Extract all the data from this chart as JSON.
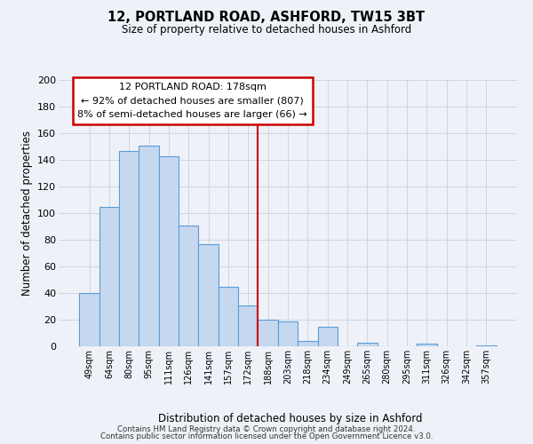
{
  "title": "12, PORTLAND ROAD, ASHFORD, TW15 3BT",
  "subtitle": "Size of property relative to detached houses in Ashford",
  "xlabel": "Distribution of detached houses by size in Ashford",
  "ylabel": "Number of detached properties",
  "categories": [
    "49sqm",
    "64sqm",
    "80sqm",
    "95sqm",
    "111sqm",
    "126sqm",
    "141sqm",
    "157sqm",
    "172sqm",
    "188sqm",
    "203sqm",
    "218sqm",
    "234sqm",
    "249sqm",
    "265sqm",
    "280sqm",
    "295sqm",
    "311sqm",
    "326sqm",
    "342sqm",
    "357sqm"
  ],
  "values": [
    40,
    105,
    147,
    151,
    143,
    91,
    77,
    45,
    31,
    20,
    19,
    4,
    15,
    0,
    3,
    0,
    0,
    2,
    0,
    0,
    1
  ],
  "bar_color": "#c5d8f0",
  "bar_edge_color": "#5b9bd5",
  "marker_index": 8,
  "ylim": [
    0,
    200
  ],
  "yticks": [
    0,
    20,
    40,
    60,
    80,
    100,
    120,
    140,
    160,
    180,
    200
  ],
  "annotation_title": "12 PORTLAND ROAD: 178sqm",
  "annotation_line1": "← 92% of detached houses are smaller (807)",
  "annotation_line2": "8% of semi-detached houses are larger (66) →",
  "annotation_box_color": "#ffffff",
  "annotation_box_edge": "#cc0000",
  "red_line_color": "#cc0000",
  "background_color": "#eef2f8",
  "grid_color": "#cdd5e3",
  "footer_line1": "Contains HM Land Registry data © Crown copyright and database right 2024.",
  "footer_line2": "Contains public sector information licensed under the Open Government Licence v3.0."
}
